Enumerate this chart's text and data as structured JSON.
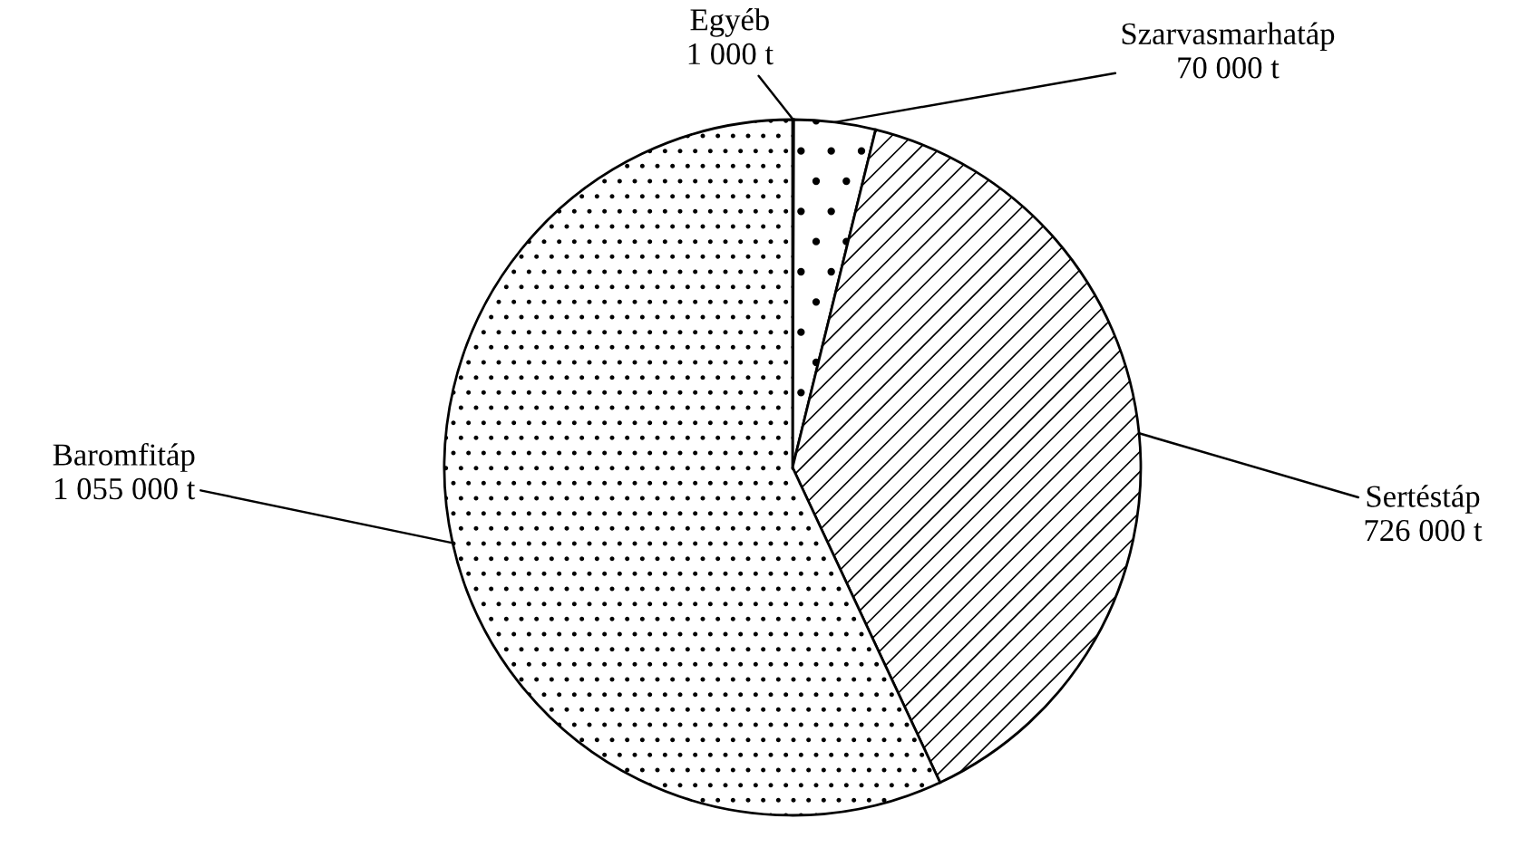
{
  "chart_data": {
    "type": "pie",
    "categories": [
      "Egyéb",
      "Szarvasmarhatáp",
      "Sertéstáp",
      "Baromfitáp"
    ],
    "values": [
      1000,
      70000,
      726000,
      1055000
    ],
    "value_labels": [
      "1 000 t",
      "70 000 t",
      "726 000 t",
      "1 055 000 t"
    ],
    "colors": [
      "#ffffff",
      "#ffffff",
      "#ffffff",
      "#ffffff"
    ],
    "legend": false
  }
}
